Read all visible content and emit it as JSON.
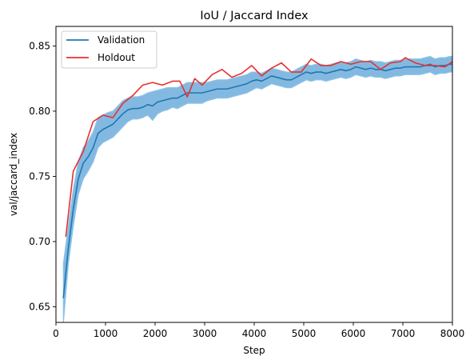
{
  "chart_data": {
    "type": "line",
    "title": "IoU / Jaccard Index",
    "xlabel": "Step",
    "ylabel": "val/jaccard_index",
    "xlim": [
      0,
      8000
    ],
    "ylim": [
      0.638,
      0.865
    ],
    "xticks": [
      0,
      1000,
      2000,
      3000,
      4000,
      5000,
      6000,
      7000,
      8000
    ],
    "yticks": [
      0.65,
      0.7,
      0.75,
      0.8,
      0.85
    ],
    "grid": false,
    "legend_position": "top-left",
    "series": [
      {
        "name": "Validation",
        "color": "#1f77b4",
        "x": [
          150,
          250,
          350,
          450,
          550,
          650,
          750,
          850,
          950,
          1050,
          1150,
          1250,
          1350,
          1450,
          1550,
          1650,
          1750,
          1850,
          1950,
          2050,
          2150,
          2250,
          2350,
          2450,
          2550,
          2650,
          2750,
          2850,
          2950,
          3050,
          3150,
          3250,
          3350,
          3450,
          3550,
          3650,
          3750,
          3850,
          3950,
          4050,
          4150,
          4250,
          4350,
          4450,
          4550,
          4650,
          4750,
          4850,
          4950,
          5050,
          5150,
          5250,
          5350,
          5450,
          5550,
          5650,
          5750,
          5850,
          5950,
          6050,
          6150,
          6250,
          6350,
          6450,
          6550,
          6650,
          6750,
          6850,
          6950,
          7050,
          7150,
          7250,
          7350,
          7450,
          7550,
          7650,
          7750,
          7850,
          7950,
          8000
        ],
        "y": [
          0.657,
          0.695,
          0.725,
          0.748,
          0.76,
          0.765,
          0.772,
          0.783,
          0.786,
          0.788,
          0.79,
          0.794,
          0.798,
          0.801,
          0.802,
          0.802,
          0.803,
          0.805,
          0.804,
          0.807,
          0.808,
          0.809,
          0.81,
          0.81,
          0.812,
          0.814,
          0.814,
          0.814,
          0.814,
          0.815,
          0.816,
          0.817,
          0.817,
          0.817,
          0.818,
          0.819,
          0.82,
          0.821,
          0.823,
          0.824,
          0.823,
          0.825,
          0.827,
          0.826,
          0.825,
          0.824,
          0.824,
          0.826,
          0.828,
          0.83,
          0.829,
          0.83,
          0.83,
          0.829,
          0.83,
          0.831,
          0.832,
          0.831,
          0.832,
          0.834,
          0.833,
          0.832,
          0.833,
          0.832,
          0.832,
          0.831,
          0.832,
          0.833,
          0.833,
          0.834,
          0.834,
          0.834,
          0.834,
          0.835,
          0.836,
          0.834,
          0.835,
          0.835,
          0.836,
          0.836
        ],
        "band_lower": [
          0.638,
          0.683,
          0.712,
          0.736,
          0.748,
          0.754,
          0.761,
          0.772,
          0.776,
          0.778,
          0.78,
          0.784,
          0.788,
          0.792,
          0.794,
          0.794,
          0.795,
          0.797,
          0.793,
          0.798,
          0.8,
          0.801,
          0.803,
          0.802,
          0.804,
          0.806,
          0.806,
          0.806,
          0.806,
          0.808,
          0.809,
          0.81,
          0.81,
          0.81,
          0.811,
          0.812,
          0.813,
          0.814,
          0.816,
          0.818,
          0.817,
          0.819,
          0.821,
          0.82,
          0.819,
          0.818,
          0.818,
          0.82,
          0.822,
          0.824,
          0.823,
          0.824,
          0.824,
          0.823,
          0.824,
          0.825,
          0.826,
          0.825,
          0.826,
          0.828,
          0.827,
          0.826,
          0.827,
          0.826,
          0.826,
          0.825,
          0.826,
          0.827,
          0.827,
          0.828,
          0.828,
          0.828,
          0.828,
          0.829,
          0.83,
          0.828,
          0.829,
          0.829,
          0.83,
          0.83
        ],
        "band_upper": [
          0.683,
          0.712,
          0.74,
          0.761,
          0.772,
          0.777,
          0.784,
          0.795,
          0.797,
          0.799,
          0.8,
          0.804,
          0.808,
          0.81,
          0.811,
          0.811,
          0.812,
          0.814,
          0.815,
          0.816,
          0.817,
          0.818,
          0.818,
          0.818,
          0.82,
          0.822,
          0.822,
          0.822,
          0.822,
          0.822,
          0.823,
          0.824,
          0.824,
          0.824,
          0.825,
          0.826,
          0.827,
          0.828,
          0.83,
          0.83,
          0.829,
          0.831,
          0.833,
          0.832,
          0.831,
          0.83,
          0.83,
          0.832,
          0.834,
          0.836,
          0.835,
          0.836,
          0.836,
          0.835,
          0.836,
          0.837,
          0.838,
          0.837,
          0.838,
          0.84,
          0.839,
          0.838,
          0.839,
          0.838,
          0.838,
          0.837,
          0.838,
          0.839,
          0.839,
          0.84,
          0.84,
          0.84,
          0.84,
          0.841,
          0.842,
          0.84,
          0.841,
          0.841,
          0.842,
          0.842
        ]
      },
      {
        "name": "Holdout",
        "color": "#e8302f",
        "x": [
          200,
          350,
          550,
          750,
          950,
          1150,
          1350,
          1550,
          1750,
          1950,
          2150,
          2350,
          2500,
          2650,
          2800,
          2950,
          3150,
          3350,
          3550,
          3750,
          3950,
          4150,
          4350,
          4550,
          4750,
          4950,
          5150,
          5350,
          5550,
          5750,
          5950,
          6150,
          6350,
          6550,
          6750,
          6950,
          7050,
          7250,
          7450,
          7650,
          7850,
          8000
        ],
        "y": [
          0.704,
          0.754,
          0.769,
          0.792,
          0.797,
          0.795,
          0.806,
          0.812,
          0.82,
          0.822,
          0.82,
          0.823,
          0.823,
          0.811,
          0.825,
          0.82,
          0.828,
          0.832,
          0.826,
          0.829,
          0.835,
          0.827,
          0.833,
          0.837,
          0.83,
          0.83,
          0.84,
          0.835,
          0.835,
          0.838,
          0.836,
          0.838,
          0.838,
          0.832,
          0.837,
          0.838,
          0.841,
          0.837,
          0.835,
          0.835,
          0.834,
          0.838
        ]
      }
    ]
  }
}
